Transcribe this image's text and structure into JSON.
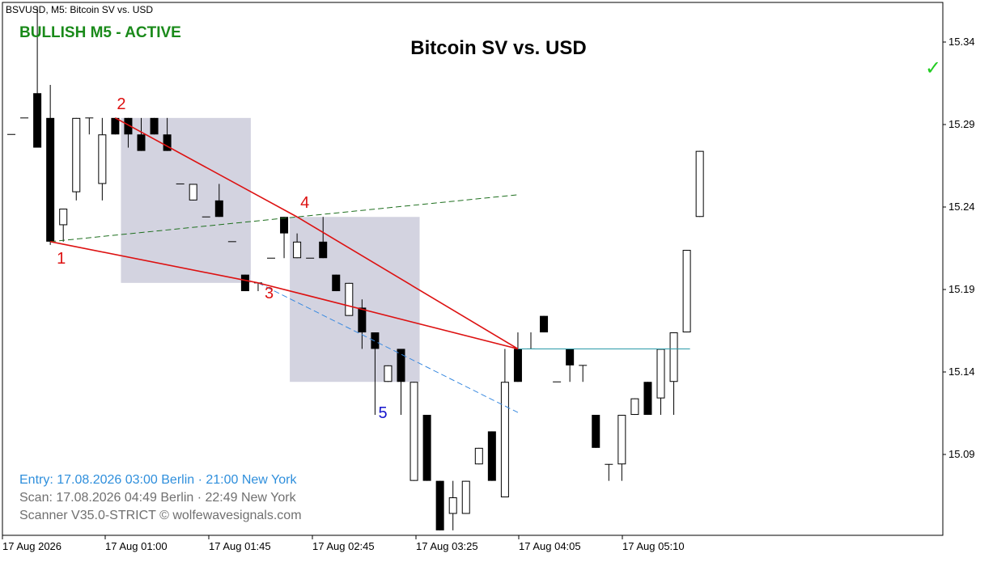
{
  "window_title": "BSVUSD, M5:  Bitcoin SV vs. USD",
  "signal_status": "BULLISH M5 - ACTIVE",
  "check_icon": "checkmark-icon",
  "info": {
    "entry": "Entry: 17.08.2026  03:00 Berlin · 21:00 New York",
    "scan": "Scan:  17.08.2026  04:49 Berlin · 22:49 New York",
    "scanner": "Scanner V35.0-STRICT   © wolfewavesignals.com"
  },
  "colors": {
    "bullish_text": "#1a8a1a",
    "wave_lines": "#dd1111",
    "wave5_label": "#1515cc",
    "entry_text": "#2f8fdc",
    "target_line": "#1e6f1e",
    "projection_line": "#3a8ae0",
    "entry_level": "#2a9aa8",
    "zone_fill": "#d3d3e0",
    "check": "#22cc22"
  },
  "chart_data": {
    "type": "candlestick",
    "title": "Bitcoin SV vs. USD",
    "symbol": "BSVUSD",
    "timeframe": "M5",
    "ylim": [
      15.027,
      15.361
    ],
    "y_ticks": [
      "15.34",
      "15.29",
      "15.24",
      "15.19",
      "15.14",
      "15.09"
    ],
    "x_ticks": [
      "17 Aug 2026",
      "17 Aug 01:00",
      "17 Aug 01:45",
      "17 Aug 02:45",
      "17 Aug 03:25",
      "17 Aug 04:05",
      "17 Aug 05:10"
    ],
    "grid": false,
    "candles": [
      {
        "o": 15.284,
        "h": 15.284,
        "l": 15.284,
        "c": 15.284
      },
      {
        "o": 15.294,
        "h": 15.294,
        "l": 15.294,
        "c": 15.294
      },
      {
        "o": 15.309,
        "h": 15.361,
        "l": 15.276,
        "c": 15.276
      },
      {
        "o": 15.294,
        "h": 15.314,
        "l": 15.217,
        "c": 15.219
      },
      {
        "o": 15.229,
        "h": 15.239,
        "l": 15.219,
        "c": 15.239
      },
      {
        "o": 15.249,
        "h": 15.294,
        "l": 15.244,
        "c": 15.294
      },
      {
        "o": 15.294,
        "h": 15.294,
        "l": 15.284,
        "c": 15.294
      },
      {
        "o": 15.254,
        "h": 15.294,
        "l": 15.244,
        "c": 15.284
      },
      {
        "o": 15.294,
        "h": 15.294,
        "l": 15.284,
        "c": 15.284
      },
      {
        "o": 15.294,
        "h": 15.294,
        "l": 15.276,
        "c": 15.284
      },
      {
        "o": 15.284,
        "h": 15.294,
        "l": 15.274,
        "c": 15.274
      },
      {
        "o": 15.294,
        "h": 15.294,
        "l": 15.284,
        "c": 15.284
      },
      {
        "o": 15.284,
        "h": 15.294,
        "l": 15.274,
        "c": 15.274
      },
      {
        "o": 15.254,
        "h": 15.254,
        "l": 15.254,
        "c": 15.254
      },
      {
        "o": 15.244,
        "h": 15.254,
        "l": 15.244,
        "c": 15.254
      },
      {
        "o": 15.234,
        "h": 15.234,
        "l": 15.234,
        "c": 15.234
      },
      {
        "o": 15.244,
        "h": 15.254,
        "l": 15.234,
        "c": 15.234
      },
      {
        "o": 15.219,
        "h": 15.219,
        "l": 15.219,
        "c": 15.219
      },
      {
        "o": 15.199,
        "h": 15.199,
        "l": 15.189,
        "c": 15.189
      },
      {
        "o": 15.194,
        "h": 15.194,
        "l": 15.189,
        "c": 15.194
      },
      {
        "o": 15.209,
        "h": 15.209,
        "l": 15.209,
        "c": 15.209
      },
      {
        "o": 15.234,
        "h": 15.234,
        "l": 15.209,
        "c": 15.224
      },
      {
        "o": 15.209,
        "h": 15.224,
        "l": 15.209,
        "c": 15.219
      },
      {
        "o": 15.209,
        "h": 15.209,
        "l": 15.209,
        "c": 15.209
      },
      {
        "o": 15.219,
        "h": 15.234,
        "l": 15.209,
        "c": 15.209
      },
      {
        "o": 15.199,
        "h": 15.199,
        "l": 15.189,
        "c": 15.189
      },
      {
        "o": 15.174,
        "h": 15.194,
        "l": 15.174,
        "c": 15.194
      },
      {
        "o": 15.179,
        "h": 15.184,
        "l": 15.154,
        "c": 15.164
      },
      {
        "o": 15.164,
        "h": 15.164,
        "l": 15.114,
        "c": 15.154
      },
      {
        "o": 15.134,
        "h": 15.144,
        "l": 15.134,
        "c": 15.144
      },
      {
        "o": 15.154,
        "h": 15.154,
        "l": 15.114,
        "c": 15.134
      },
      {
        "o": 15.074,
        "h": 15.134,
        "l": 15.074,
        "c": 15.134
      },
      {
        "o": 15.114,
        "h": 15.114,
        "l": 15.074,
        "c": 15.074
      },
      {
        "o": 15.074,
        "h": 15.074,
        "l": 15.044,
        "c": 15.044
      },
      {
        "o": 15.054,
        "h": 15.074,
        "l": 15.044,
        "c": 15.064
      },
      {
        "o": 15.054,
        "h": 15.074,
        "l": 15.054,
        "c": 15.074
      },
      {
        "o": 15.084,
        "h": 15.094,
        "l": 15.084,
        "c": 15.094
      },
      {
        "o": 15.104,
        "h": 15.104,
        "l": 15.074,
        "c": 15.074
      },
      {
        "o": 15.064,
        "h": 15.154,
        "l": 15.064,
        "c": 15.134
      },
      {
        "o": 15.154,
        "h": 15.164,
        "l": 15.134,
        "c": 15.134
      },
      {
        "o": 15.154,
        "h": 15.164,
        "l": 15.154,
        "c": 15.154
      },
      {
        "o": 15.174,
        "h": 15.174,
        "l": 15.164,
        "c": 15.164
      },
      {
        "o": 15.134,
        "h": 15.134,
        "l": 15.134,
        "c": 15.134
      },
      {
        "o": 15.154,
        "h": 15.154,
        "l": 15.134,
        "c": 15.144
      },
      {
        "o": 15.144,
        "h": 15.144,
        "l": 15.134,
        "c": 15.144
      },
      {
        "o": 15.114,
        "h": 15.114,
        "l": 15.094,
        "c": 15.094
      },
      {
        "o": 15.084,
        "h": 15.084,
        "l": 15.074,
        "c": 15.084
      },
      {
        "o": 15.084,
        "h": 15.114,
        "l": 15.074,
        "c": 15.114
      },
      {
        "o": 15.114,
        "h": 15.124,
        "l": 15.114,
        "c": 15.124
      },
      {
        "o": 15.134,
        "h": 15.134,
        "l": 15.114,
        "c": 15.114
      },
      {
        "o": 15.124,
        "h": 15.154,
        "l": 15.114,
        "c": 15.154
      },
      {
        "o": 15.134,
        "h": 15.164,
        "l": 15.114,
        "c": 15.164
      },
      {
        "o": 15.164,
        "h": 15.214,
        "l": 15.164,
        "c": 15.214
      },
      {
        "o": 15.234,
        "h": 15.274,
        "l": 15.234,
        "c": 15.274
      }
    ],
    "waves": [
      {
        "label": "1",
        "candle": 3,
        "price": 15.219
      },
      {
        "label": "2",
        "candle": 8,
        "price": 15.294
      },
      {
        "label": "3",
        "candle": 19,
        "price": 15.194
      },
      {
        "label": "4",
        "candle": 22,
        "price": 15.234
      },
      {
        "label": "5",
        "candle": 29,
        "price": 15.134
      }
    ],
    "entry_price": 15.154,
    "zones": [
      {
        "from_candle": 9,
        "to_candle": 18,
        "top": 15.294,
        "bottom": 15.194
      },
      {
        "from_candle": 22,
        "to_candle": 31,
        "top": 15.234,
        "bottom": 15.134
      }
    ]
  }
}
